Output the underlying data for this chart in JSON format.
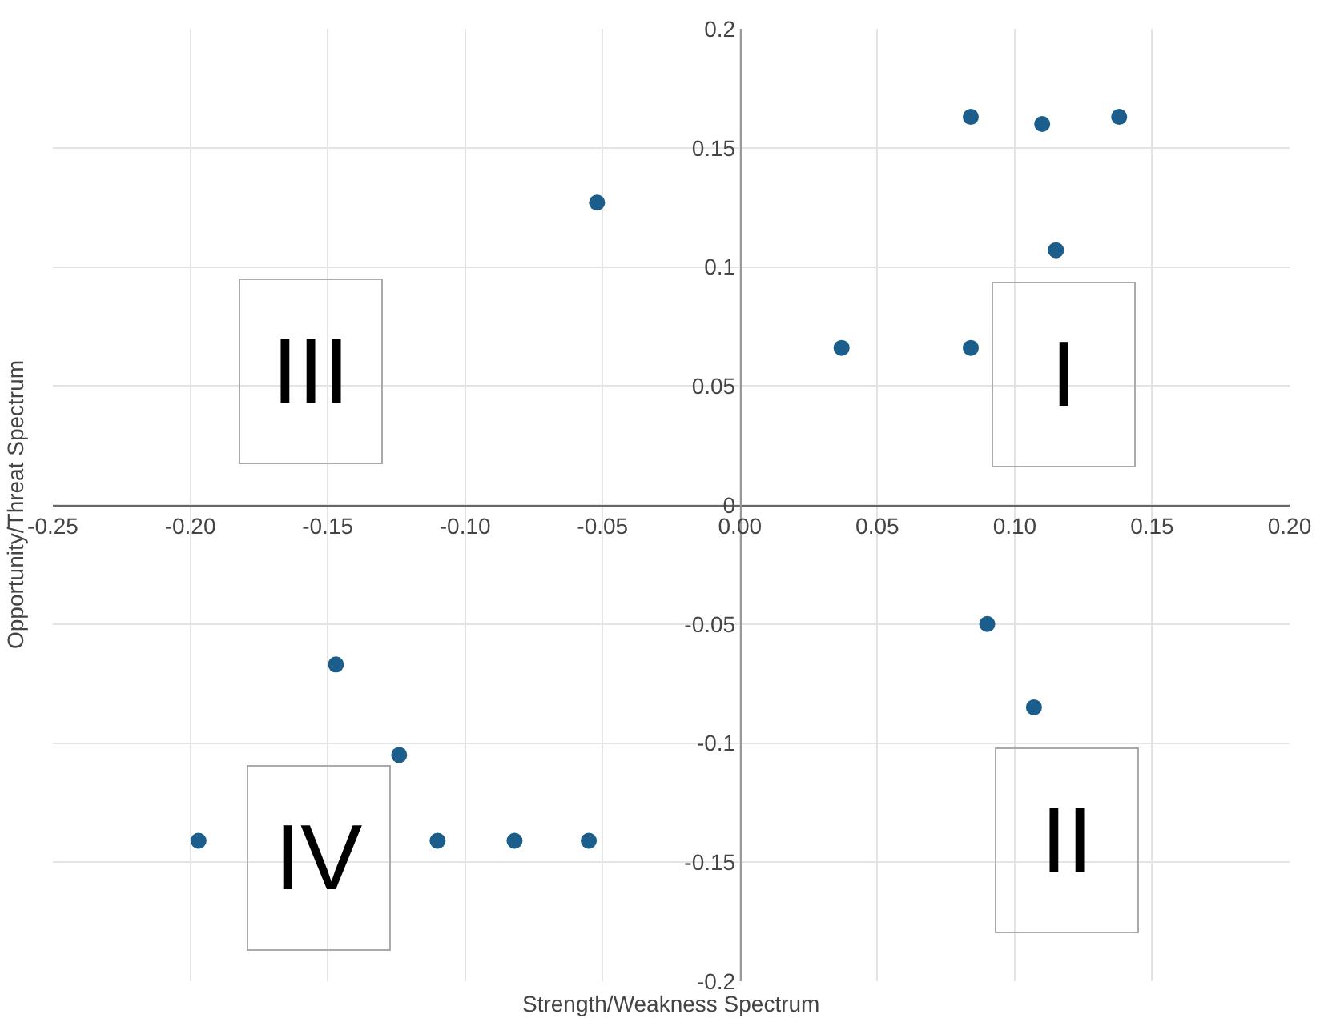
{
  "chart_data": {
    "type": "scatter",
    "xlabel": "Strength/Weakness Spectrum",
    "ylabel": "Opportunity/Threat Spectrum",
    "x": [
      -0.052,
      0.037,
      0.084,
      0.084,
      0.11,
      0.138,
      0.115,
      -0.197,
      -0.147,
      -0.124,
      -0.11,
      -0.082,
      -0.055,
      0.09,
      0.107
    ],
    "values": [
      0.127,
      0.066,
      0.066,
      0.163,
      0.16,
      0.163,
      0.107,
      -0.141,
      -0.067,
      -0.105,
      -0.141,
      -0.141,
      -0.141,
      -0.05,
      -0.085
    ],
    "color": "#1b5e8c",
    "marker": "circle",
    "grid": true,
    "xlim": [
      -0.25,
      0.2
    ],
    "xticks": [
      {
        "value": -0.25,
        "label": "-0.25"
      },
      {
        "value": -0.2,
        "label": "-0.20"
      },
      {
        "value": -0.15,
        "label": "-0.15"
      },
      {
        "value": -0.1,
        "label": "-0.10"
      },
      {
        "value": -0.05,
        "label": "-0.05"
      },
      {
        "value": 0,
        "label": "0.00"
      },
      {
        "value": 0.05,
        "label": "0.05"
      },
      {
        "value": 0.1,
        "label": "0.10"
      },
      {
        "value": 0.15,
        "label": "0.15"
      },
      {
        "value": 0.2,
        "label": "0.20"
      }
    ],
    "ylim": [
      -0.2,
      0.2
    ],
    "yticks": [
      -0.2,
      -0.15,
      -0.1,
      -0.05,
      0,
      0.05,
      0.1,
      0.15,
      0.2
    ],
    "annotations": [
      "I",
      "II",
      "III",
      "IV"
    ]
  }
}
